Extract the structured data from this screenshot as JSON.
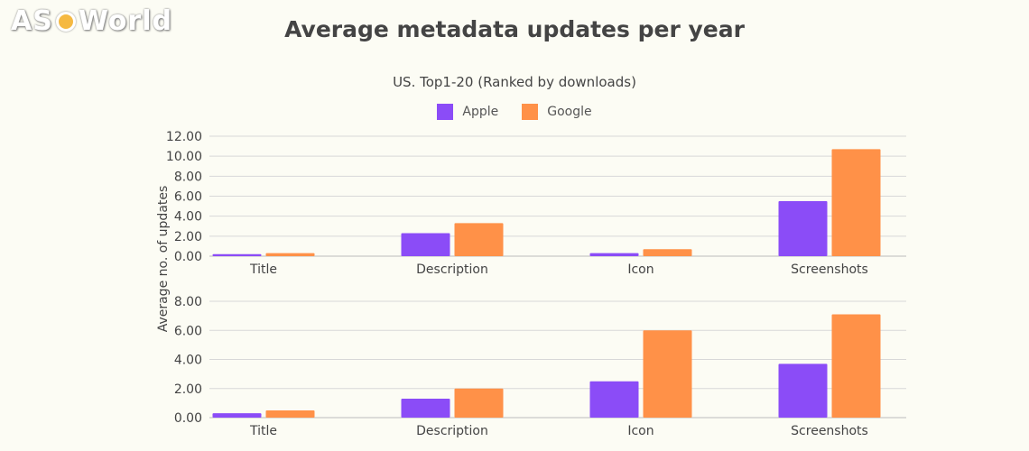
{
  "logo": {
    "text_left": "AS",
    "text_right": "World"
  },
  "colors": {
    "apple": "#8b4cf7",
    "google": "#ff9148",
    "grid": "#d8d8d8",
    "text": "#444444"
  },
  "chart_data": {
    "title": "Average metadata updates per year",
    "subtitle": "US. Top1-20 (Ranked by downloads)",
    "ylabel": "Average no. of updates",
    "legend": [
      "Apple",
      "Google"
    ],
    "charts": [
      {
        "type": "bar",
        "categories": [
          "Title",
          "Description",
          "Icon",
          "Screenshots"
        ],
        "ylim": [
          0,
          12
        ],
        "yticks": [
          "0.00",
          "2.00",
          "4.00",
          "6.00",
          "8.00",
          "10.00",
          "12.00"
        ],
        "series": [
          {
            "name": "Apple",
            "values": [
              0.2,
              2.3,
              0.3,
              5.5
            ]
          },
          {
            "name": "Google",
            "values": [
              0.3,
              3.3,
              0.7,
              10.7
            ]
          }
        ]
      },
      {
        "type": "bar",
        "categories": [
          "Title",
          "Description",
          "Icon",
          "Screenshots"
        ],
        "ylim": [
          0,
          8
        ],
        "yticks": [
          "0.00",
          "2.00",
          "4.00",
          "6.00",
          "8.00"
        ],
        "series": [
          {
            "name": "Apple",
            "values": [
              0.3,
              1.3,
              2.5,
              3.7
            ]
          },
          {
            "name": "Google",
            "values": [
              0.5,
              2.0,
              6.0,
              7.1
            ]
          }
        ]
      }
    ]
  }
}
